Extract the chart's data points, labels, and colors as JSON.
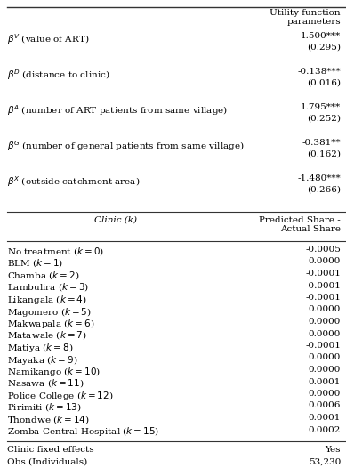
{
  "col2_header": "Utility function\nparameters",
  "section2_col1_header": "Clinic (k)",
  "section2_col2_header": "Predicted Share -\nActual Share",
  "params": [
    {
      "label": "$\\beta^V$ (value of ART)",
      "value": "1.500***",
      "se": "(0.295)"
    },
    {
      "label": "$\\beta^D$ (distance to clinic)",
      "value": "-0.138***",
      "se": "(0.016)"
    },
    {
      "label": "$\\beta^A$ (number of ART patients from same village)",
      "value": "1.795***",
      "se": "(0.252)"
    },
    {
      "label": "$\\beta^G$ (number of general patients from same village)",
      "value": "-0.381**",
      "se": "(0.162)"
    },
    {
      "label": "$\\beta^X$ (outside catchment area)",
      "value": "-1.480***",
      "se": "(0.266)"
    }
  ],
  "clinics": [
    {
      "name": "No treatment ($k = 0$)",
      "value": "-0.0005"
    },
    {
      "name": "BLM ($k = 1$)",
      "value": "0.0000"
    },
    {
      "name": "Chamba ($k = 2$)",
      "value": "-0.0001"
    },
    {
      "name": "Lambulira ($k = 3$)",
      "value": "-0.0001"
    },
    {
      "name": "Likangala ($k = 4$)",
      "value": "-0.0001"
    },
    {
      "name": "Magomero ($k = 5$)",
      "value": "0.0000"
    },
    {
      "name": "Makwapala ($k = 6$)",
      "value": "0.0000"
    },
    {
      "name": "Matawale ($k = 7$)",
      "value": "0.0000"
    },
    {
      "name": "Matiya ($k = 8$)",
      "value": "-0.0001"
    },
    {
      "name": "Mayaka ($k = 9$)",
      "value": "0.0000"
    },
    {
      "name": "Namikango ($k = 10$)",
      "value": "0.0000"
    },
    {
      "name": "Nasawa ($k = 11$)",
      "value": "0.0001"
    },
    {
      "name": "Police College ($k = 12$)",
      "value": "0.0000"
    },
    {
      "name": "Pirimiti ($k = 13$)",
      "value": "0.0006"
    },
    {
      "name": "Thondwe ($k = 14$)",
      "value": "0.0001"
    },
    {
      "name": "Zomba Central Hospital ($k = 15$)",
      "value": "0.0002"
    }
  ],
  "footer": [
    {
      "label": "Clinic fixed effects",
      "value": "Yes"
    },
    {
      "label": "Obs (Individuals)",
      "value": "53,230"
    }
  ],
  "bg_color": "#ffffff",
  "text_color": "#000000",
  "font_size": 7.5,
  "line_color": "#333333"
}
